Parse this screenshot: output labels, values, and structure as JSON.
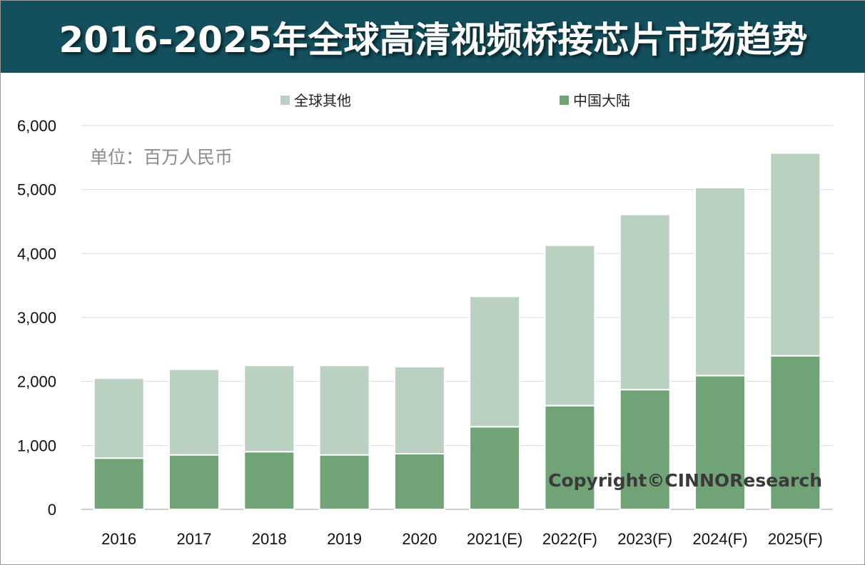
{
  "title": "2016-2025年全球高清视频桥接芯片市场趋势",
  "unit_note": "单位：百万人民币",
  "copyright": "Copyright©CINNOResearch",
  "colors": {
    "header_bg": "#134f5c",
    "other": "#bad0c1",
    "china": "#70a376",
    "grid": "#d9d9d9"
  },
  "chart_data": {
    "type": "bar",
    "stacked": true,
    "categories": [
      "2016",
      "2017",
      "2018",
      "2019",
      "2020",
      "2021(E)",
      "2022(F)",
      "2023(F)",
      "2024(F)",
      "2025(F)"
    ],
    "series": [
      {
        "name": "中国大陆",
        "values": [
          800,
          850,
          900,
          850,
          870,
          1290,
          1620,
          1870,
          2090,
          2400
        ]
      },
      {
        "name": "全球其他",
        "values": [
          1250,
          1340,
          1350,
          1400,
          1360,
          2040,
          2510,
          2740,
          2940,
          3170
        ]
      }
    ],
    "legend": [
      "全球其他",
      "中国大陆"
    ],
    "legend_position": "top",
    "ylim": [
      0,
      6000
    ],
    "yticks": [
      "0",
      "1,000",
      "2,000",
      "3,000",
      "4,000",
      "5,000",
      "6,000"
    ],
    "grid": true,
    "xlabel": "",
    "ylabel": ""
  }
}
